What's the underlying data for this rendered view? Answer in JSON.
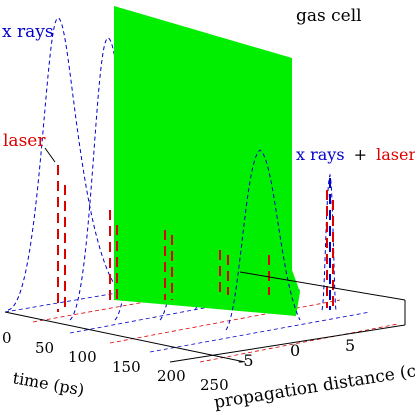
{
  "labels": {
    "gas_cell": "gas cell",
    "xrays": "x rays",
    "laser": "laser",
    "xrays_plus": "x rays",
    "plus_sign": "+",
    "laser_right": "laser",
    "time_axis": "time (ps)",
    "distance_axis": "propagation distance (cm)"
  },
  "time_ticks": [
    "0",
    "50",
    "100",
    "150",
    "200",
    "250"
  ],
  "distance_ticks": [
    "-5",
    "0",
    "5"
  ],
  "colors": {
    "xray": "#0000cc",
    "laser": "#dd0000",
    "gas_cell": "#00ee00",
    "axis": "#000000"
  }
}
